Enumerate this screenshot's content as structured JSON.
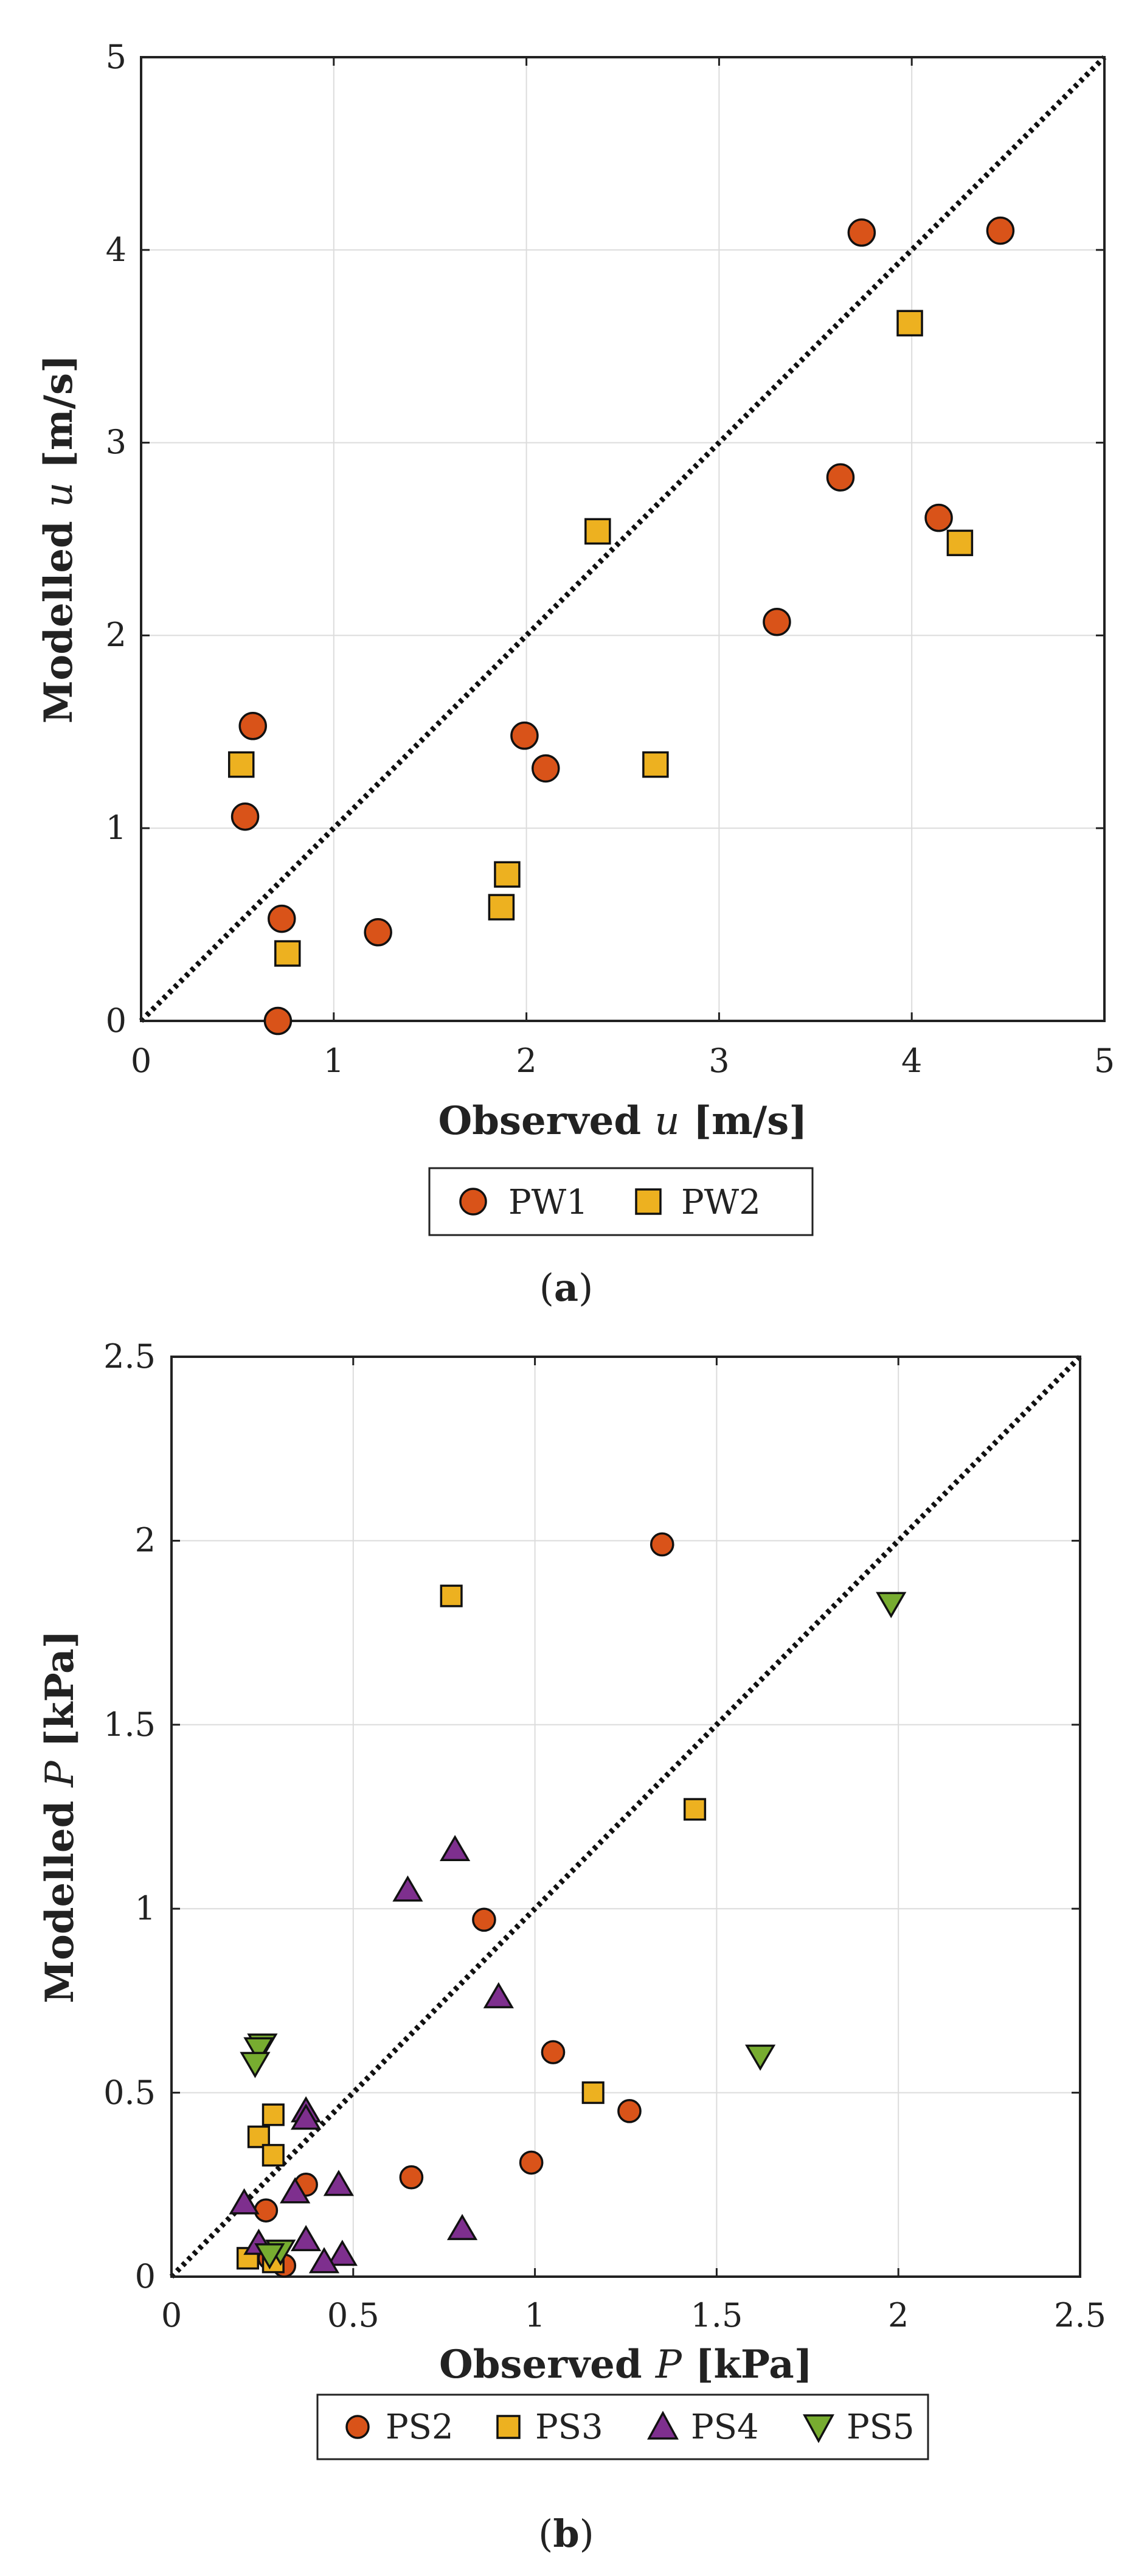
{
  "colors": {
    "orange": "#D95319",
    "yellow": "#EDB120",
    "purple": "#7E2F8E",
    "green": "#77AC30",
    "grid": "#dcdcdc",
    "axis": "#222222"
  },
  "chart_data": [
    {
      "type": "scatter",
      "label": "(a)",
      "label_open": "(",
      "label_letter": "a",
      "label_close": ")",
      "title": "",
      "xlabel": "Observed u [m/s]",
      "xlabel_parts": [
        "Observed ",
        "u",
        " [m/s]"
      ],
      "ylabel": "Modelled u [m/s]",
      "ylabel_parts": [
        "Modelled ",
        "u",
        " [m/s]"
      ],
      "xlim": [
        0,
        5
      ],
      "ylim": [
        0,
        5
      ],
      "xticks": [
        0,
        1,
        2,
        3,
        4,
        5
      ],
      "yticks": [
        0,
        1,
        2,
        3,
        4,
        5
      ],
      "xtick_labels": [
        "0",
        "1",
        "2",
        "3",
        "4",
        "5"
      ],
      "ytick_labels": [
        "0",
        "1",
        "2",
        "3",
        "4",
        "5"
      ],
      "grid": true,
      "reference_line": "1:1 dotted",
      "legend_position": "bottom-center outside",
      "series": [
        {
          "name": "PW1",
          "marker": "circle",
          "color_key": "orange",
          "x": [
            0.58,
            0.54,
            0.73,
            0.71,
            1.23,
            1.99,
            2.1,
            3.3,
            3.63,
            3.74,
            4.14,
            4.46
          ],
          "y": [
            1.53,
            1.06,
            0.53,
            0.0,
            0.46,
            1.48,
            1.31,
            2.07,
            2.82,
            4.09,
            2.61,
            4.1
          ]
        },
        {
          "name": "PW2",
          "marker": "square",
          "color_key": "yellow",
          "x": [
            0.52,
            0.76,
            1.87,
            1.9,
            2.37,
            2.67,
            3.99,
            4.25
          ],
          "y": [
            1.33,
            0.35,
            0.59,
            0.76,
            2.54,
            1.33,
            3.62,
            2.48
          ]
        }
      ]
    },
    {
      "type": "scatter",
      "label": "(b)",
      "label_open": "(",
      "label_letter": "b",
      "label_close": ")",
      "title": "",
      "xlabel": "Observed P [kPa]",
      "xlabel_parts": [
        "Observed ",
        "P",
        " [kPa]"
      ],
      "ylabel": "Modelled P [kPa]",
      "ylabel_parts": [
        "Modelled ",
        "P",
        " [kPa]"
      ],
      "xlim": [
        0,
        2.5
      ],
      "ylim": [
        0,
        2.5
      ],
      "xticks": [
        0,
        0.5,
        1,
        1.5,
        2,
        2.5
      ],
      "yticks": [
        0,
        0.5,
        1,
        1.5,
        2,
        2.5
      ],
      "xtick_labels": [
        "0",
        "0.5",
        "1",
        "1.5",
        "2",
        "2.5"
      ],
      "ytick_labels": [
        "0",
        "0.5",
        "1",
        "1.5",
        "2",
        "2.5"
      ],
      "grid": true,
      "reference_line": "1:1 dotted",
      "legend_position": "bottom-center outside",
      "series": [
        {
          "name": "PS2",
          "marker": "circle",
          "color_key": "orange",
          "x": [
            1.35,
            0.86,
            1.05,
            1.26,
            0.66,
            0.37,
            0.26,
            0.99,
            0.31,
            0.27
          ],
          "y": [
            1.99,
            0.97,
            0.61,
            0.45,
            0.27,
            0.25,
            0.18,
            0.31,
            0.03,
            0.05
          ]
        },
        {
          "name": "PS3",
          "marker": "square",
          "color_key": "yellow",
          "x": [
            0.77,
            1.44,
            1.16,
            0.28,
            0.24,
            0.28,
            0.21,
            0.28
          ],
          "y": [
            1.85,
            1.27,
            0.5,
            0.44,
            0.38,
            0.33,
            0.05,
            0.04
          ]
        },
        {
          "name": "PS4",
          "marker": "triangle-up",
          "color_key": "purple",
          "x": [
            0.78,
            0.65,
            0.9,
            0.37,
            0.37,
            0.2,
            0.34,
            0.46,
            0.8,
            0.37,
            0.24,
            0.47,
            0.42
          ],
          "y": [
            1.16,
            1.05,
            0.76,
            0.45,
            0.43,
            0.2,
            0.23,
            0.25,
            0.13,
            0.1,
            0.09,
            0.06,
            0.04
          ]
        },
        {
          "name": "PS5",
          "marker": "triangle-down",
          "color_key": "green",
          "x": [
            1.98,
            1.62,
            0.25,
            0.24,
            0.23,
            0.3,
            0.27
          ],
          "y": [
            1.83,
            0.6,
            0.63,
            0.62,
            0.58,
            0.07,
            0.06
          ]
        }
      ]
    }
  ]
}
